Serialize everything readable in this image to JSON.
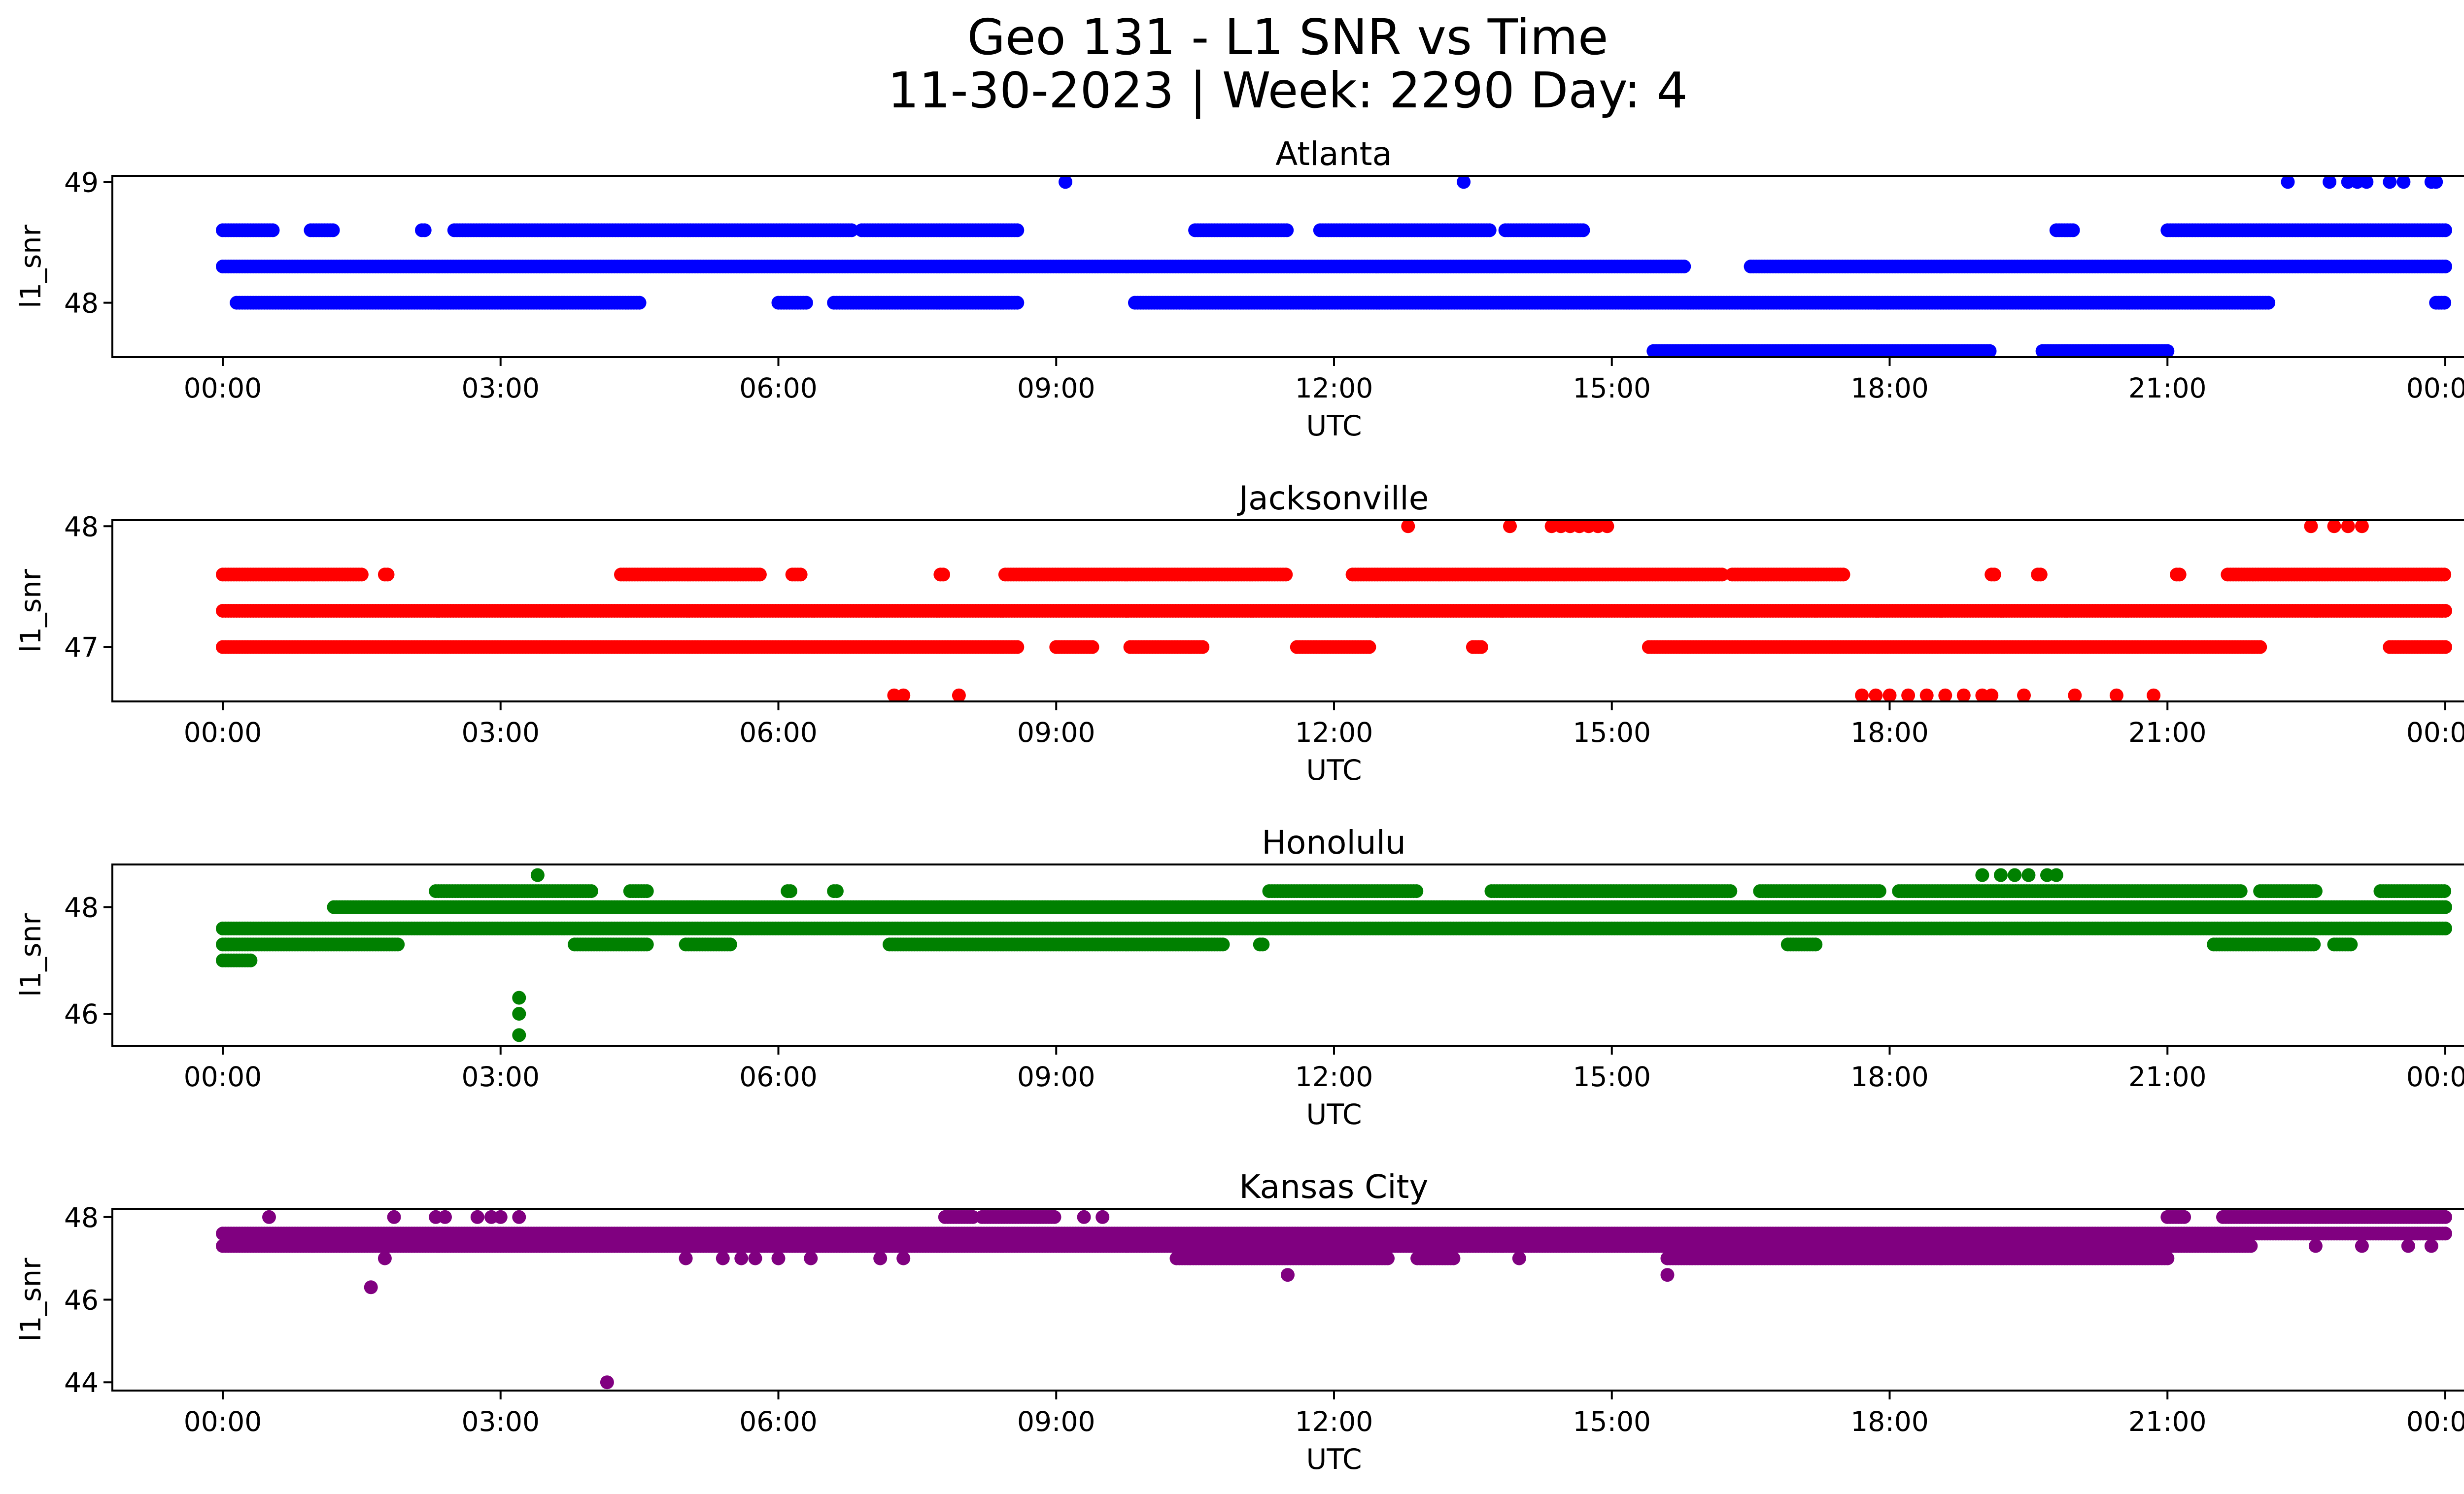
{
  "title_line1": "Geo 131 - L1 SNR vs Time",
  "title_line2": "11-30-2023 | Week: 2290 Day: 4",
  "chart_data": [
    {
      "type": "scatter",
      "title": "Atlanta",
      "xlabel": "UTC",
      "ylabel": "l1_snr",
      "color": "#0000ff",
      "xlim": [
        0,
        24
      ],
      "ylim": [
        47.55,
        49.05
      ],
      "yticks": [
        48,
        49
      ],
      "xtick_labels": [
        "00:00",
        "03:00",
        "06:00",
        "09:00",
        "12:00",
        "15:00",
        "18:00",
        "21:00",
        "00:00"
      ],
      "levels": [
        {
          "y": 47.6,
          "segments": [
            [
              15.45,
              19.1
            ],
            [
              19.65,
              21.0
            ]
          ]
        },
        {
          "y": 48.0,
          "segments": [
            [
              0.15,
              4.5
            ],
            [
              6.0,
              6.3
            ],
            [
              6.6,
              8.6
            ],
            [
              9.85,
              22.1
            ],
            [
              23.9,
              24.0
            ]
          ]
        },
        {
          "y": 48.3,
          "segments": [
            [
              0.0,
              15.8
            ],
            [
              16.5,
              24.0
            ]
          ]
        },
        {
          "y": 48.6,
          "segments": [
            [
              0.0,
              0.55
            ],
            [
              0.95,
              1.2
            ],
            [
              2.15,
              2.2
            ],
            [
              2.5,
              6.8
            ],
            [
              6.9,
              8.6
            ],
            [
              10.5,
              11.5
            ],
            [
              11.85,
              13.7
            ],
            [
              13.85,
              14.7
            ],
            [
              19.8,
              20.0
            ],
            [
              21.0,
              24.0
            ]
          ]
        },
        {
          "y": 49.0,
          "points": [
            9.1,
            13.4,
            22.3,
            22.75,
            22.95,
            23.05,
            23.15,
            23.4,
            23.55,
            23.85,
            23.9
          ]
        }
      ]
    },
    {
      "type": "scatter",
      "title": "Jacksonville",
      "xlabel": "UTC",
      "ylabel": "l1_snr",
      "color": "#ff0000",
      "xlim": [
        0,
        24
      ],
      "ylim": [
        46.55,
        48.05
      ],
      "yticks": [
        47,
        48
      ],
      "xtick_labels": [
        "00:00",
        "03:00",
        "06:00",
        "09:00",
        "12:00",
        "15:00",
        "18:00",
        "21:00",
        "00:00"
      ],
      "levels": [
        {
          "y": 46.6,
          "points": [
            7.25,
            7.35,
            7.95,
            17.7,
            17.85,
            18.0,
            18.2,
            18.4,
            18.6,
            18.8,
            19.0,
            19.1,
            19.45,
            20.0,
            20.45,
            20.85
          ]
        },
        {
          "y": 47.0,
          "segments": [
            [
              0.0,
              8.6
            ],
            [
              9.0,
              9.4
            ],
            [
              9.8,
              10.6
            ],
            [
              11.6,
              12.4
            ],
            [
              13.5,
              13.6
            ],
            [
              15.4,
              22.0
            ],
            [
              23.4,
              24.0
            ]
          ]
        },
        {
          "y": 47.3,
          "segments": [
            [
              0.0,
              24.0
            ]
          ]
        },
        {
          "y": 47.6,
          "segments": [
            [
              0.0,
              1.5
            ],
            [
              1.75,
              1.8
            ],
            [
              4.3,
              5.8
            ],
            [
              6.15,
              6.25
            ],
            [
              7.75,
              7.8
            ],
            [
              8.45,
              11.5
            ],
            [
              12.2,
              16.2
            ],
            [
              16.3,
              17.5
            ],
            [
              19.1,
              19.15
            ],
            [
              19.6,
              19.65
            ],
            [
              21.1,
              21.15
            ],
            [
              21.65,
              24.0
            ]
          ]
        },
        {
          "y": 48.0,
          "points": [
            12.8,
            13.9,
            14.35,
            14.45,
            14.55,
            14.65,
            14.75,
            14.85,
            14.95,
            22.55,
            22.8,
            22.95,
            23.1
          ]
        }
      ]
    },
    {
      "type": "scatter",
      "title": "Honolulu",
      "xlabel": "UTC",
      "ylabel": "l1_snr",
      "color": "#008000",
      "xlim": [
        0,
        24
      ],
      "ylim": [
        45.4,
        48.8
      ],
      "yticks": [
        46,
        48
      ],
      "xtick_labels": [
        "00:00",
        "03:00",
        "06:00",
        "09:00",
        "12:00",
        "15:00",
        "18:00",
        "21:00",
        "00:00"
      ],
      "levels": [
        {
          "y": 45.6,
          "points": [
            3.2
          ]
        },
        {
          "y": 46.0,
          "points": [
            3.2
          ]
        },
        {
          "y": 46.3,
          "points": [
            3.2
          ]
        },
        {
          "y": 47.0,
          "segments": [
            [
              0.0,
              0.3
            ]
          ]
        },
        {
          "y": 47.3,
          "segments": [
            [
              0.0,
              1.9
            ],
            [
              3.8,
              4.6
            ],
            [
              5.0,
              5.5
            ],
            [
              7.2,
              10.8
            ],
            [
              11.2,
              11.25
            ],
            [
              16.9,
              17.2
            ],
            [
              21.5,
              22.6
            ],
            [
              22.8,
              23.0
            ]
          ]
        },
        {
          "y": 47.6,
          "segments": [
            [
              0.0,
              24.0
            ]
          ]
        },
        {
          "y": 48.0,
          "segments": [
            [
              1.2,
              24.0
            ]
          ]
        },
        {
          "y": 48.3,
          "segments": [
            [
              2.3,
              4.0
            ],
            [
              4.4,
              4.6
            ],
            [
              6.1,
              6.15
            ],
            [
              6.6,
              6.65
            ],
            [
              11.3,
              12.9
            ],
            [
              13.7,
              16.3
            ],
            [
              16.6,
              17.9
            ],
            [
              18.1,
              21.8
            ],
            [
              22.0,
              22.6
            ],
            [
              23.3,
              24.0
            ]
          ]
        },
        {
          "y": 48.6,
          "points": [
            3.4,
            19.0,
            19.2,
            19.35,
            19.5,
            19.7,
            19.8
          ]
        }
      ]
    },
    {
      "type": "scatter",
      "title": "Kansas City",
      "xlabel": "UTC",
      "ylabel": "l1_snr",
      "color": "#800080",
      "xlim": [
        0,
        24
      ],
      "ylim": [
        43.8,
        48.2
      ],
      "yticks": [
        44,
        46,
        48
      ],
      "xtick_labels": [
        "00:00",
        "03:00",
        "06:00",
        "09:00",
        "12:00",
        "15:00",
        "18:00",
        "21:00",
        "00:00"
      ],
      "levels": [
        {
          "y": 44.0,
          "points": [
            4.15
          ]
        },
        {
          "y": 46.3,
          "points": [
            1.6
          ]
        },
        {
          "y": 46.6,
          "points": [
            11.5,
            15.6
          ]
        },
        {
          "y": 47.0,
          "points": [
            1.75,
            5.0,
            5.4,
            5.6,
            5.75,
            6.0,
            6.35,
            7.1,
            7.35,
            14.0
          ],
          "segments": [
            [
              10.3,
              12.6
            ],
            [
              12.9,
              13.3
            ],
            [
              15.6,
              21.0
            ]
          ]
        },
        {
          "y": 47.3,
          "points": [
            22.6,
            23.1,
            23.6,
            23.85
          ],
          "segments": [
            [
              0.0,
              21.9
            ]
          ]
        },
        {
          "y": 47.6,
          "segments": [
            [
              0.0,
              24.0
            ]
          ]
        },
        {
          "y": 48.0,
          "points": [
            0.5,
            1.85,
            2.3,
            2.4,
            2.75,
            2.9,
            3.0,
            3.2,
            9.3,
            9.5
          ],
          "segments": [
            [
              7.8,
              8.1
            ],
            [
              8.2,
              9.0
            ],
            [
              21.0,
              21.2
            ],
            [
              21.6,
              24.0
            ]
          ]
        }
      ]
    }
  ]
}
